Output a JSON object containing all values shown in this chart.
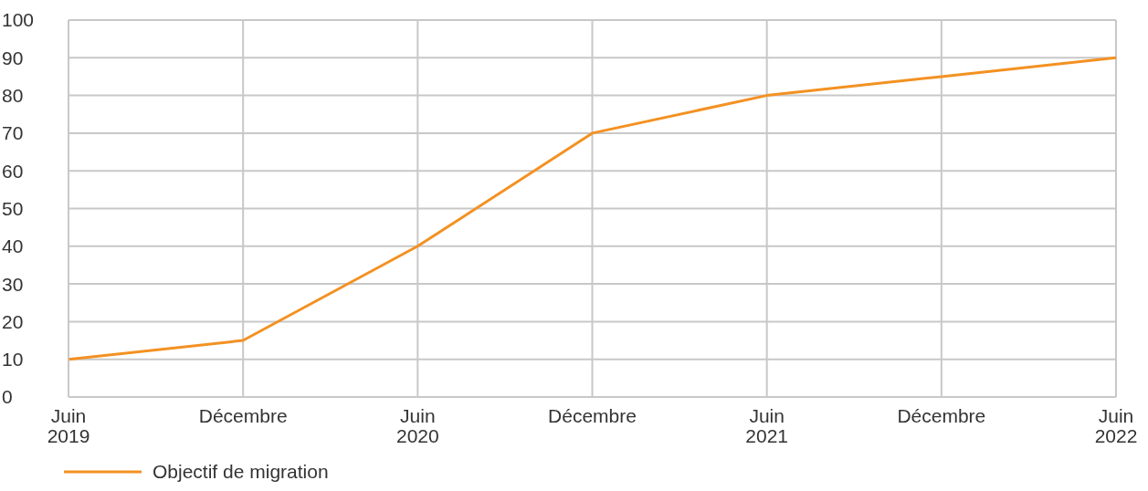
{
  "chart_data": {
    "type": "line",
    "categories": [
      "Juin\n2019",
      "Décembre",
      "Juin\n2020",
      "Décembre",
      "Juin\n2021",
      "Décembre",
      "Juin\n2022"
    ],
    "series": [
      {
        "name": "Objectif de migration",
        "color": "#f39122",
        "values": [
          10,
          15,
          40,
          70,
          80,
          85,
          90
        ]
      }
    ],
    "ylim": [
      0,
      100
    ],
    "yticks": [
      0,
      10,
      20,
      30,
      40,
      50,
      60,
      70,
      80,
      90,
      100
    ],
    "grid": true,
    "legend": "bottom left",
    "marker": "none",
    "line_style": "solid"
  }
}
